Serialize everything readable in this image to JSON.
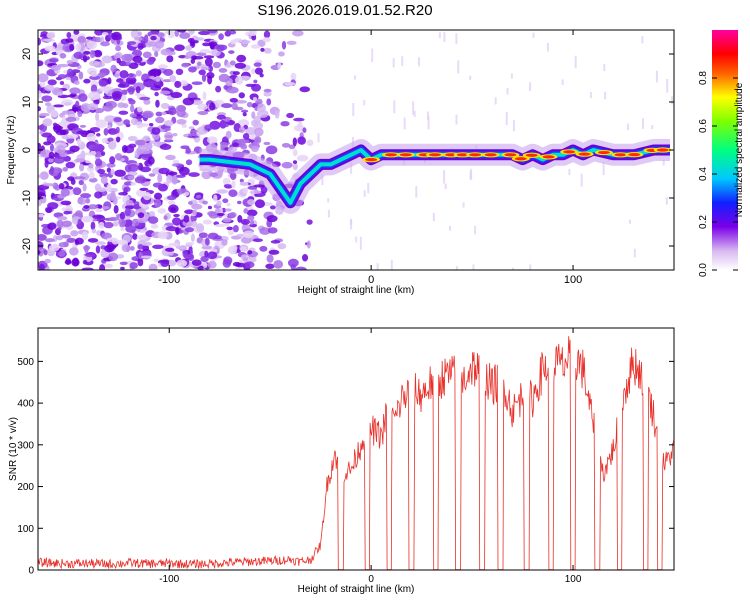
{
  "title": "S196.2026.019.01.52.R20",
  "chart_data": [
    {
      "type": "heatmap",
      "xlabel": "Height of straight line (km)",
      "ylabel": "Frequency (Hz)",
      "xlim": [
        -165,
        150
      ],
      "ylim": [
        -25,
        25
      ],
      "x_ticks": [
        -100,
        0,
        100
      ],
      "y_ticks": [
        -20,
        -10,
        0,
        10,
        20
      ],
      "colorbar": {
        "label": "Normalized spectral amplitude",
        "range": [
          0,
          1
        ],
        "ticks": [
          "0.0",
          "0.2",
          "0.4",
          "0.6",
          "0.8"
        ],
        "colormap": "white-purple-blue-cyan-green-yellow-red-magenta"
      },
      "ridge": {
        "x": [
          -85,
          -80,
          -60,
          -50,
          -45,
          -40,
          -35,
          -30,
          -25,
          -20,
          -15,
          -10,
          -5,
          0,
          5,
          10,
          20,
          30,
          40,
          50,
          60,
          70,
          75,
          80,
          85,
          90,
          95,
          100,
          105,
          110,
          120,
          130,
          140,
          148
        ],
        "y": [
          -2,
          -2,
          -3,
          -5,
          -8,
          -11,
          -7,
          -5,
          -3,
          -3,
          -2,
          -1,
          0,
          -2,
          -1,
          -1,
          -1,
          -1,
          -1,
          -1,
          -1,
          -1,
          -2,
          -1,
          -2,
          -1,
          -1,
          0,
          -1,
          0,
          -1,
          -1,
          0,
          0
        ]
      },
      "noise_region": [
        -165,
        -30
      ]
    },
    {
      "type": "line",
      "xlabel": "Height of straight line (km)",
      "ylabel": "SNR (10 * v/v)",
      "xlim": [
        -165,
        150
      ],
      "ylim": [
        0,
        580
      ],
      "x_ticks": [
        -100,
        0,
        100
      ],
      "y_ticks": [
        0,
        100,
        200,
        300,
        400,
        500
      ],
      "color": "#e8302a",
      "series": [
        {
          "x": [
            -165,
            -150,
            -140,
            -130,
            -120,
            -110,
            -100,
            -90,
            -80,
            -70,
            -60,
            -50,
            -40,
            -35,
            -30,
            -25,
            -22,
            -18,
            -15,
            -10,
            -5,
            -2,
            2,
            5,
            8,
            12,
            15,
            20,
            25,
            30,
            35,
            40,
            45,
            50,
            55,
            60,
            65,
            70,
            75,
            80,
            85,
            90,
            95,
            100,
            105,
            110,
            115,
            120,
            125,
            130,
            135,
            140,
            145,
            150
          ],
          "y": [
            18,
            15,
            16,
            14,
            17,
            15,
            16,
            14,
            15,
            18,
            20,
            22,
            25,
            20,
            25,
            60,
            200,
            280,
            230,
            240,
            300,
            350,
            330,
            320,
            380,
            360,
            410,
            430,
            420,
            450,
            460,
            470,
            450,
            490,
            470,
            440,
            460,
            380,
            420,
            410,
            480,
            500,
            490,
            520,
            480,
            350,
            230,
            290,
            420,
            500,
            460,
            370,
            250,
            290
          ]
        }
      ],
      "dropouts": [
        -15,
        -2,
        9,
        20,
        32,
        43,
        55,
        64,
        77,
        89,
        100,
        112,
        123,
        136,
        143
      ]
    }
  ]
}
